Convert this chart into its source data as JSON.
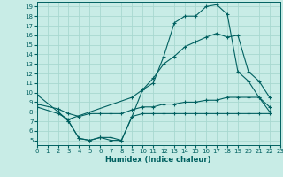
{
  "xlabel": "Humidex (Indice chaleur)",
  "bg_color": "#c8ece6",
  "grid_color": "#a8d8d0",
  "line_color": "#006060",
  "line1_x": [
    0,
    2,
    3,
    4,
    5,
    6,
    7,
    8,
    9,
    10,
    11,
    12,
    13,
    14,
    15,
    16,
    17,
    18,
    19,
    20,
    21,
    22
  ],
  "line1_y": [
    9.8,
    8.0,
    7.0,
    5.2,
    5.0,
    5.3,
    5.0,
    5.0,
    7.5,
    10.3,
    11.0,
    13.8,
    17.3,
    18.0,
    18.0,
    19.0,
    19.2,
    18.2,
    12.2,
    11.2,
    9.5,
    8.0
  ],
  "line2_x": [
    0,
    2,
    3,
    9,
    10,
    11,
    12,
    13,
    14,
    15,
    16,
    17,
    18,
    19,
    20,
    21,
    22
  ],
  "line2_y": [
    8.5,
    7.8,
    7.2,
    9.5,
    10.3,
    11.5,
    13.0,
    13.8,
    14.8,
    15.3,
    15.8,
    16.2,
    15.8,
    16.0,
    12.2,
    11.2,
    9.5
  ],
  "line3_x": [
    0,
    2,
    3,
    4,
    5,
    6,
    7,
    8,
    9,
    10,
    11,
    12,
    13,
    14,
    15,
    16,
    17,
    18,
    19,
    20,
    21,
    22
  ],
  "line3_y": [
    8.8,
    8.3,
    7.8,
    7.5,
    7.8,
    7.8,
    7.8,
    7.8,
    8.2,
    8.5,
    8.5,
    8.8,
    8.8,
    9.0,
    9.0,
    9.2,
    9.2,
    9.5,
    9.5,
    9.5,
    9.5,
    8.5
  ],
  "line4_x": [
    2,
    3,
    4,
    5,
    6,
    7,
    8,
    9,
    10,
    11,
    12,
    13,
    14,
    15,
    16,
    17,
    18,
    19,
    20,
    21,
    22
  ],
  "line4_y": [
    8.0,
    7.0,
    5.2,
    5.0,
    5.3,
    5.3,
    5.0,
    7.5,
    7.8,
    7.8,
    7.8,
    7.8,
    7.8,
    7.8,
    7.8,
    7.8,
    7.8,
    7.8,
    7.8,
    7.8,
    7.8
  ],
  "xlim": [
    0,
    23
  ],
  "ylim": [
    4.5,
    19.5
  ],
  "yticks": [
    5,
    6,
    7,
    8,
    9,
    10,
    11,
    12,
    13,
    14,
    15,
    16,
    17,
    18,
    19
  ],
  "xticks": [
    0,
    1,
    2,
    3,
    4,
    5,
    6,
    7,
    8,
    9,
    10,
    11,
    12,
    13,
    14,
    15,
    16,
    17,
    18,
    19,
    20,
    21,
    22,
    23
  ]
}
